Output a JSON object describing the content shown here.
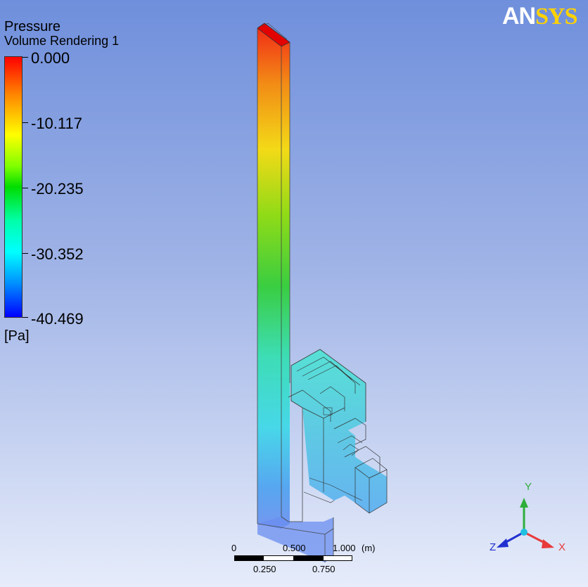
{
  "legend": {
    "title": "Pressure",
    "subtitle": "Volume Rendering 1",
    "ticks": [
      "0.000",
      "-10.117",
      "-20.235",
      "-30.352",
      "-40.469"
    ],
    "units": "[Pa]"
  },
  "logo": {
    "text_a": "AN",
    "text_b": "SYS"
  },
  "scale": {
    "top_labels": [
      "0",
      "0.500",
      "1.000",
      "(m)"
    ],
    "bottom_labels": [
      "0.250",
      "0.750"
    ]
  },
  "triad": {
    "x": "X",
    "y": "Y",
    "z": "Z"
  },
  "colors": {
    "max": "#ff0000",
    "min": "#0000ff",
    "axis_x": "#e83a3a",
    "axis_y": "#2fae3a",
    "axis_z": "#2030d0",
    "center": "#20c0e0"
  }
}
